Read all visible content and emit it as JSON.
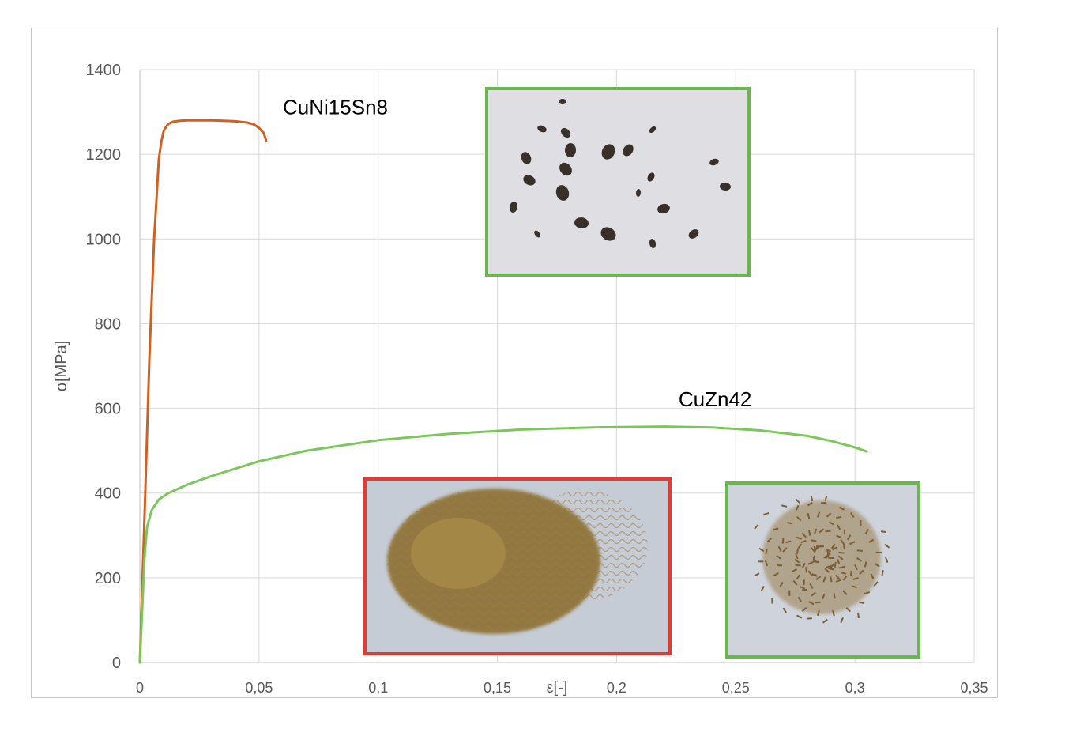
{
  "chart_data": {
    "type": "line",
    "xlabel": "ε[-]",
    "ylabel": "σ[MPa]",
    "xlim": [
      0,
      0.35
    ],
    "ylim": [
      0,
      1400
    ],
    "x_ticks": [
      0,
      0.05,
      0.1,
      0.15,
      0.2,
      0.25,
      0.3,
      0.35
    ],
    "x_tick_labels": [
      "0",
      "0,05",
      "0,1",
      "0,15",
      "0,2",
      "0,25",
      "0,3",
      "0,35"
    ],
    "y_ticks": [
      0,
      200,
      400,
      600,
      800,
      1000,
      1200,
      1400
    ],
    "y_tick_labels": [
      "0",
      "200",
      "400",
      "600",
      "800",
      "1000",
      "1200",
      "1400"
    ],
    "grid": true,
    "legend": "none",
    "series": [
      {
        "name": "CuNi15Sn8",
        "color": "#d2601f",
        "x": [
          0,
          0.002,
          0.004,
          0.006,
          0.008,
          0.009,
          0.01,
          0.011,
          0.012,
          0.014,
          0.017,
          0.02,
          0.025,
          0.03,
          0.035,
          0.04,
          0.045,
          0.048,
          0.05,
          0.052,
          0.053
        ],
        "y": [
          0,
          350,
          720,
          1000,
          1190,
          1230,
          1255,
          1265,
          1272,
          1277,
          1279,
          1280,
          1280,
          1280,
          1279,
          1278,
          1275,
          1270,
          1262,
          1250,
          1232
        ]
      },
      {
        "name": "CuZn42",
        "color": "#7cc75a",
        "x": [
          0,
          0.002,
          0.003,
          0.005,
          0.008,
          0.012,
          0.02,
          0.03,
          0.05,
          0.07,
          0.1,
          0.13,
          0.16,
          0.19,
          0.22,
          0.24,
          0.26,
          0.28,
          0.29,
          0.3,
          0.305
        ],
        "y": [
          0,
          250,
          320,
          360,
          385,
          400,
          420,
          440,
          475,
          500,
          525,
          540,
          550,
          555,
          557,
          555,
          548,
          535,
          523,
          508,
          498
        ]
      }
    ],
    "annotations": [
      {
        "text": "CuNi15Sn8",
        "x": 0.06,
        "y": 1295
      },
      {
        "text": "CuZn42",
        "x": 0.226,
        "y": 605
      }
    ]
  },
  "insets": [
    {
      "name": "inset-cuni-chips",
      "border_color": "#6ab84d",
      "depicts": "small dark chips on white"
    },
    {
      "name": "inset-cuzn-long-chips",
      "border_color": "#e23a35",
      "depicts": "tangled long brass chips"
    },
    {
      "name": "inset-cuzn-short-chips",
      "border_color": "#6ab84d",
      "depicts": "short brass chips"
    }
  ]
}
